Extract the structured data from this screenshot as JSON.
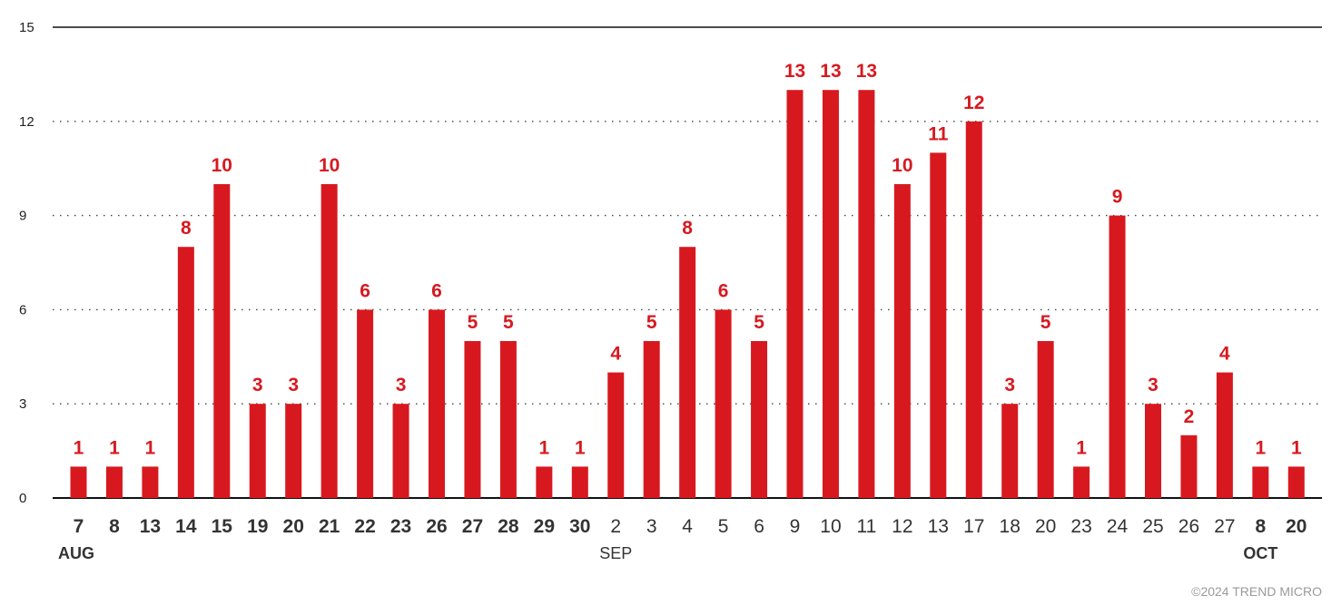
{
  "chart_data": {
    "type": "bar",
    "categories": [
      "7",
      "8",
      "13",
      "14",
      "15",
      "19",
      "20",
      "21",
      "22",
      "23",
      "26",
      "27",
      "28",
      "29",
      "30",
      "2",
      "3",
      "4",
      "5",
      "6",
      "9",
      "10",
      "11",
      "12",
      "13",
      "17",
      "18",
      "20",
      "23",
      "24",
      "25",
      "26",
      "27",
      "8",
      "20"
    ],
    "values": [
      1,
      1,
      1,
      8,
      10,
      3,
      3,
      10,
      6,
      3,
      6,
      5,
      5,
      1,
      1,
      4,
      5,
      8,
      6,
      5,
      13,
      13,
      13,
      10,
      11,
      12,
      3,
      5,
      1,
      9,
      3,
      2,
      4,
      1,
      1
    ],
    "bold_categories": [
      true,
      true,
      true,
      true,
      true,
      true,
      true,
      true,
      true,
      true,
      true,
      true,
      true,
      true,
      true,
      false,
      false,
      false,
      false,
      false,
      false,
      false,
      false,
      false,
      false,
      false,
      false,
      false,
      false,
      false,
      false,
      false,
      false,
      true,
      true
    ],
    "month_labels": [
      {
        "label": "AUG",
        "index": 0,
        "align": "start",
        "bold": true
      },
      {
        "label": "SEP",
        "index": 15,
        "align": "middle",
        "bold": false
      },
      {
        "label": "OCT",
        "index": 33,
        "align": "middle",
        "bold": true
      }
    ],
    "ylim": [
      0,
      15
    ],
    "yticks": [
      0,
      3,
      6,
      9,
      12,
      15
    ],
    "grid": true,
    "bar_color": "#d7191f",
    "label_color": "#d7191f"
  },
  "footer": {
    "copyright": "©2024 TREND MICRO"
  }
}
